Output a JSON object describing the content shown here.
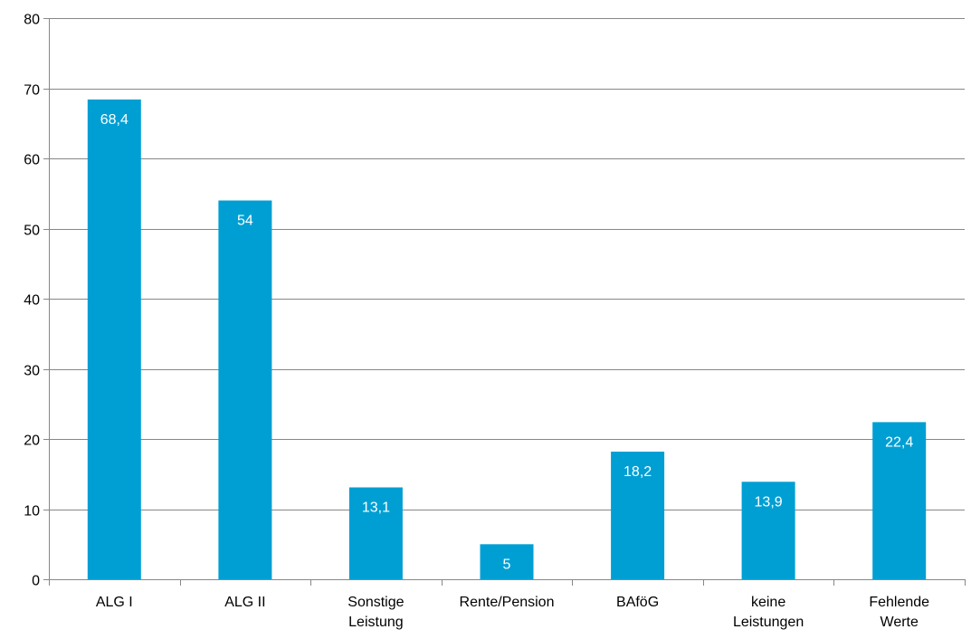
{
  "chart_data": {
    "type": "bar",
    "categories": [
      [
        "ALG I"
      ],
      [
        "ALG II"
      ],
      [
        "Sonstige",
        "Leistung"
      ],
      [
        "Rente/Pension"
      ],
      [
        "BAföG"
      ],
      [
        "keine",
        "Leistungen"
      ],
      [
        "Fehlende",
        "Werte"
      ]
    ],
    "values": [
      68.4,
      54,
      13.1,
      5,
      18.2,
      13.9,
      22.4
    ],
    "data_labels": [
      "68,4",
      "54",
      "13,1",
      "5",
      "18,2",
      "13,9",
      "22,4"
    ],
    "ylim": [
      0,
      80
    ],
    "yticks": [
      0,
      10,
      20,
      30,
      40,
      50,
      60,
      70,
      80
    ],
    "grid": true,
    "bar_color": "#009FD3",
    "grid_color": "#878787",
    "title": "",
    "xlabel": "",
    "ylabel": ""
  }
}
